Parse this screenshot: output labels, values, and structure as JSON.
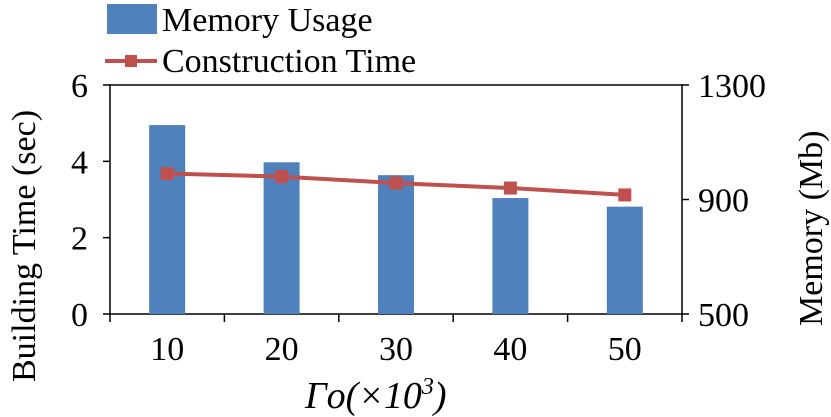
{
  "chart_data": {
    "type": "bar+line",
    "categories": [
      "10",
      "20",
      "30",
      "40",
      "50"
    ],
    "x_label_main": "Γo(×10",
    "x_label_sup": "3",
    "x_label_close": ")",
    "ylabel_left": "Building Time (sec)",
    "ylabel_right": "Memory (Mb)",
    "y_left_lim": [
      0,
      6
    ],
    "y_left_ticks": [
      "0",
      "2",
      "4",
      "6"
    ],
    "y_right_lim": [
      500,
      1300
    ],
    "y_right_ticks": [
      "500",
      "900",
      "1300"
    ],
    "grid": false,
    "legend_position": "top-left",
    "series": [
      {
        "name": "Memory Usage",
        "type": "bar",
        "axis": "right",
        "color": "#4F81BD",
        "values": [
          1160,
          1030,
          985,
          905,
          875
        ]
      },
      {
        "name": "Construction Time",
        "type": "line",
        "axis": "left",
        "color": "#C0504D",
        "marker": "square",
        "values": [
          3.68,
          3.6,
          3.43,
          3.3,
          3.12
        ]
      }
    ]
  }
}
